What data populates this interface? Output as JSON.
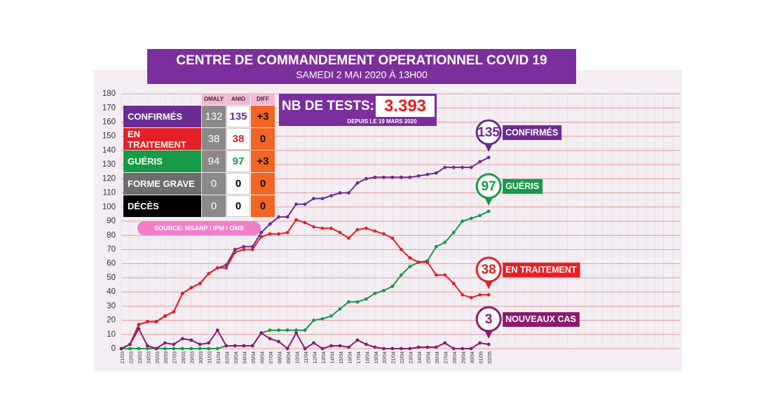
{
  "header": {
    "title": "CENTRE DE COMMANDEMENT OPERATIONNEL COVID 19",
    "subtitle": "SAMEDI 2 MAI 2020 À 13H00"
  },
  "table": {
    "columns": [
      "OMALY",
      "ANIO",
      "DIFF"
    ],
    "rows": [
      {
        "label": "CONFIRMÉS",
        "omaly": 132,
        "anio": 135,
        "diff": "+3"
      },
      {
        "label": "EN TRAITEMENT",
        "omaly": 38,
        "anio": 38,
        "diff": 0
      },
      {
        "label": "GUÉRIS",
        "omaly": 94,
        "anio": 97,
        "diff": "+3"
      },
      {
        "label": "FORME GRAVE",
        "omaly": 0,
        "anio": 0,
        "diff": 0
      },
      {
        "label": "DÉCÈS",
        "omaly": 0,
        "anio": 0,
        "diff": 0
      }
    ]
  },
  "source": "SOURCE: MSANP / IPM / OMS",
  "tests": {
    "label": "NB DE TESTS:",
    "value": "3.393",
    "note": "DEPUIS LE 19 MARS 2020"
  },
  "chart_data": {
    "type": "line",
    "categories": [
      "21/03",
      "22/03",
      "23/03",
      "24/03",
      "25/03",
      "26/03",
      "27/03",
      "28/03",
      "29/03",
      "30/03",
      "31/03",
      "01/04",
      "02/04",
      "03/04",
      "04/04",
      "05/04",
      "06/04",
      "07/04",
      "08/04",
      "09/04",
      "10/04",
      "11/04",
      "12/04",
      "13/04",
      "14/04",
      "15/04",
      "16/04",
      "17/04",
      "18/04",
      "19/04",
      "20/04",
      "21/04",
      "22/04",
      "23/04",
      "24/04",
      "25/04",
      "26/04",
      "27/04",
      "28/04",
      "29/04",
      "30/04",
      "01/05",
      "02/05"
    ],
    "ylim": [
      0,
      180
    ],
    "yticks": [
      0,
      10,
      20,
      30,
      40,
      50,
      60,
      70,
      80,
      90,
      100,
      110,
      120,
      130,
      140,
      150,
      160,
      170,
      180
    ],
    "grid": true,
    "series": [
      {
        "name": "CONFIRMÉS",
        "color": "#6b2c91",
        "values": [
          0,
          3,
          17,
          19,
          19,
          23,
          26,
          39,
          43,
          46,
          53,
          57,
          59,
          70,
          72,
          72,
          82,
          88,
          93,
          93,
          102,
          102,
          106,
          106,
          108,
          110,
          110,
          117,
          120,
          121,
          121,
          121,
          121,
          121,
          122,
          123,
          124,
          128,
          128,
          128,
          128,
          132,
          135
        ]
      },
      {
        "name": "GUÉRIS",
        "color": "#179a48",
        "values": [
          0,
          0,
          0,
          0,
          0,
          0,
          0,
          0,
          0,
          0,
          0,
          0,
          2,
          2,
          2,
          2,
          11,
          13,
          13,
          13,
          13,
          13,
          20,
          21,
          23,
          28,
          33,
          33,
          35,
          39,
          41,
          44,
          52,
          58,
          61,
          62,
          72,
          75,
          82,
          90,
          92,
          94,
          97
        ]
      },
      {
        "name": "EN TRAITEMENT",
        "color": "#e41f25",
        "values": [
          0,
          3,
          17,
          19,
          19,
          23,
          26,
          39,
          43,
          46,
          53,
          57,
          57,
          68,
          70,
          70,
          79,
          81,
          81,
          82,
          91,
          89,
          86,
          85,
          85,
          82,
          78,
          84,
          85,
          83,
          81,
          78,
          70,
          64,
          61,
          61,
          52,
          52,
          46,
          38,
          36,
          38,
          38
        ]
      },
      {
        "name": "NOUVEAUX CAS",
        "color": "#8c1a6c",
        "values": [
          0,
          3,
          14,
          2,
          0,
          4,
          3,
          7,
          6,
          3,
          4,
          13,
          2,
          2,
          2,
          2,
          11,
          7,
          5,
          0,
          11,
          0,
          4,
          0,
          2,
          2,
          1,
          6,
          3,
          1,
          0,
          0,
          0,
          0,
          1,
          1,
          1,
          4,
          0,
          0,
          0,
          4,
          3
        ]
      }
    ]
  }
}
